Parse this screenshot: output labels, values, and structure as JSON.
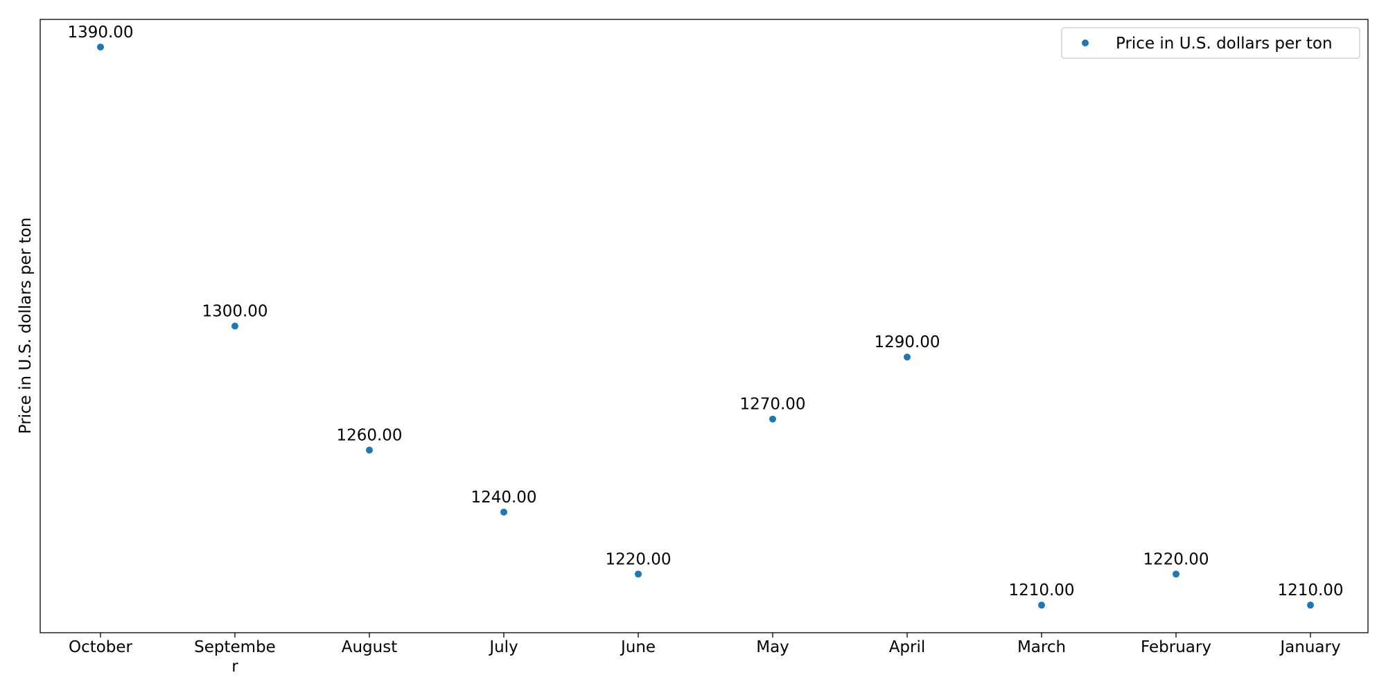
{
  "chart_data": {
    "type": "scatter",
    "categories": [
      "October",
      "September",
      "August",
      "July",
      "June",
      "May",
      "April",
      "March",
      "February",
      "January"
    ],
    "tick_label_lines": [
      [
        "October"
      ],
      [
        "Septembe",
        "r"
      ],
      [
        "August"
      ],
      [
        "July"
      ],
      [
        "June"
      ],
      [
        "May"
      ],
      [
        "April"
      ],
      [
        "March"
      ],
      [
        "February"
      ],
      [
        "January"
      ]
    ],
    "series": [
      {
        "name": "Price in U.S. dollars per ton",
        "values": [
          1390,
          1300,
          1260,
          1240,
          1220,
          1270,
          1290,
          1210,
          1220,
          1210
        ],
        "labels": [
          "1390.00",
          "1300.00",
          "1260.00",
          "1240.00",
          "1220.00",
          "1270.00",
          "1290.00",
          "1210.00",
          "1220.00",
          "1210.00"
        ],
        "color": "#1f77b4"
      }
    ],
    "title": "",
    "xlabel": "",
    "ylabel": "Price in U.S. dollars per ton",
    "ylim": [
      1201.1,
      1398.9
    ],
    "grid": false,
    "legend_position": "top-right",
    "y_ticks_visible": false
  }
}
